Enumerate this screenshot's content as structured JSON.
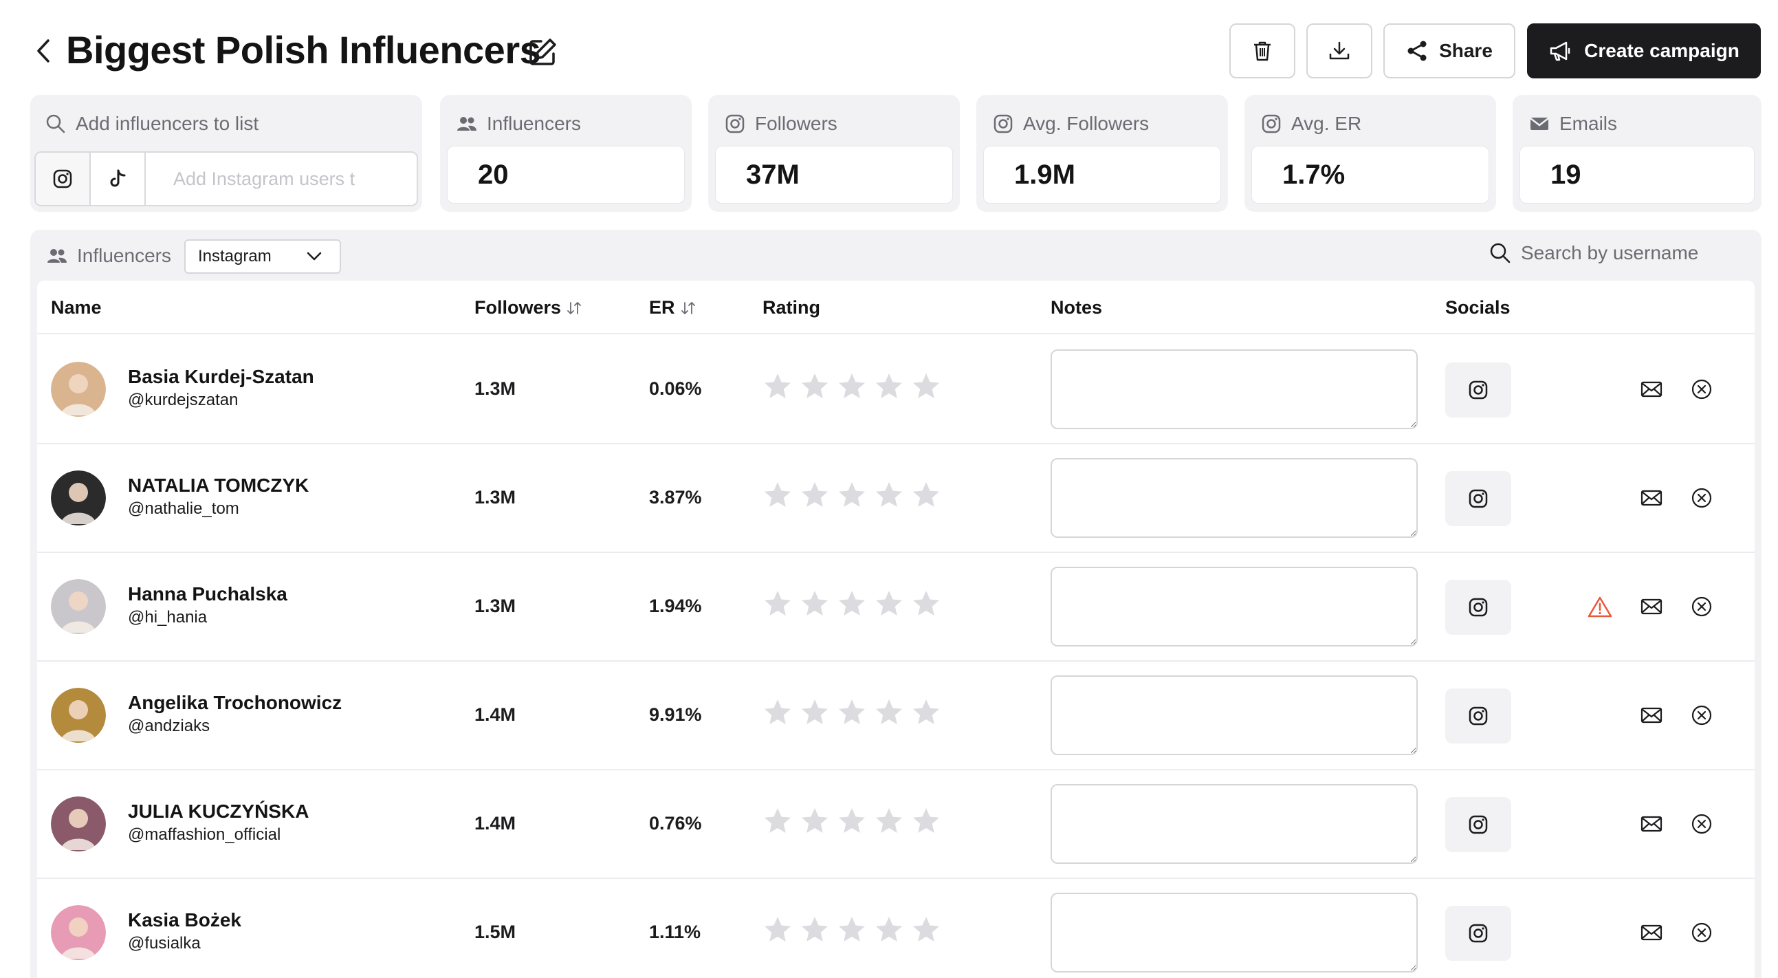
{
  "header": {
    "title": "Biggest Polish Influencers",
    "share_label": "Share",
    "campaign_label": "Create campaign"
  },
  "add_card": {
    "label": "Add influencers to list",
    "input_placeholder": "Add Instagram users t"
  },
  "stats": {
    "influencers": {
      "label": "Influencers",
      "value": "20"
    },
    "followers": {
      "label": "Followers",
      "value": "37M"
    },
    "avg_followers": {
      "label": "Avg. Followers",
      "value": "1.9M"
    },
    "avg_er": {
      "label": "Avg. ER",
      "value": "1.7%"
    },
    "emails": {
      "label": "Emails",
      "value": "19"
    }
  },
  "toolbar": {
    "label": "Influencers",
    "platform": "Instagram",
    "search_placeholder": "Search by username"
  },
  "columns": {
    "name": "Name",
    "followers": "Followers",
    "er": "ER",
    "rating": "Rating",
    "notes": "Notes",
    "socials": "Socials"
  },
  "rows": [
    {
      "name": "Basia Kurdej-Szatan",
      "handle": "@kurdejszatan",
      "followers": "1.3M",
      "er": "0.06%",
      "rating": 0,
      "warning": false,
      "avatar_color": "#d9b48f"
    },
    {
      "name": "NATALIA TOMCZYK",
      "handle": "@nathalie_tom",
      "followers": "1.3M",
      "er": "3.87%",
      "rating": 0,
      "warning": false,
      "avatar_color": "#2b2b2b"
    },
    {
      "name": "Hanna Puchalska",
      "handle": "@hi_hania",
      "followers": "1.3M",
      "er": "1.94%",
      "rating": 0,
      "warning": true,
      "avatar_color": "#c9c6cc"
    },
    {
      "name": "Angelika Trochonowicz",
      "handle": "@andziaks",
      "followers": "1.4M",
      "er": "9.91%",
      "rating": 0,
      "warning": false,
      "avatar_color": "#b48a3c"
    },
    {
      "name": "JULIA KUCZYŃSKA",
      "handle": "@maffashion_official",
      "followers": "1.4M",
      "er": "0.76%",
      "rating": 0,
      "warning": false,
      "avatar_color": "#8a5a6a"
    },
    {
      "name": "Kasia Bożek",
      "handle": "@fusialka",
      "followers": "1.5M",
      "er": "1.11%",
      "rating": 0,
      "warning": false,
      "avatar_color": "#e79bb4"
    }
  ],
  "colors": {
    "primary_dark": "#1c1c1e",
    "panel_bg": "#f2f2f4",
    "star_empty": "#dcdce0",
    "warning": "#e8583a"
  }
}
